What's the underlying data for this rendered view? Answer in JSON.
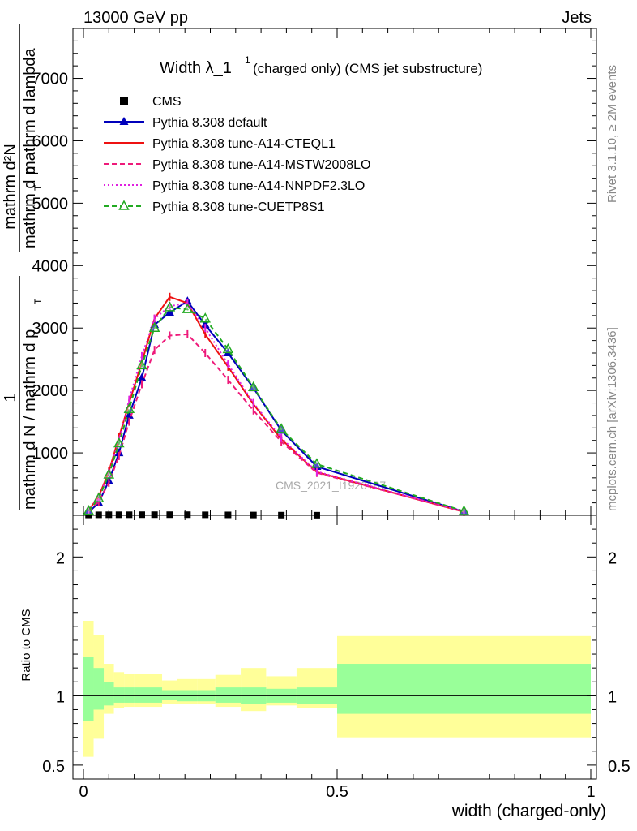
{
  "header": {
    "left": "13000 GeV pp",
    "right": "Jets",
    "side_top": "Rivet 3.1.10, ≥ 2M events",
    "side_bottom": "mcplots.cern.ch [arXiv:1306.3436]",
    "watermark": "CMS_2021_I1920187"
  },
  "chart_data": [
    {
      "type": "line",
      "title": "Width λ_1^1 (charged only) (CMS jet substructure)",
      "title_parts": {
        "main": "Width λ_1",
        "sup": "1",
        "suffix": "(charged only) (CMS jet substructure)"
      },
      "ylabel": "1 / mathrm d N / mathrm d p_T mathrm d^2N / mathrm d p_T mathrm d lambda",
      "ylabel_parts": {
        "one": "1",
        "left_denominator": "mathrm d N / mathrm d p",
        "left_sub": "T",
        "right_numerator": "mathrm d²N",
        "right_denominator": "mathrm d p",
        "right_sub": "T",
        "right_tail": "mathrm d lambda"
      },
      "xlim": [
        0,
        1
      ],
      "ylim": [
        0,
        7800
      ],
      "yticks": [
        1000,
        2000,
        3000,
        4000,
        5000,
        6000,
        7000
      ],
      "ytick_labels": [
        "1000",
        "2000",
        "3000",
        "4000",
        "5000",
        "6000",
        "7000"
      ],
      "grid": false,
      "legend_placement": "top-left",
      "series": [
        {
          "name": "CMS",
          "color": "#000000",
          "style": "markers",
          "marker": "square",
          "x": [
            0.01,
            0.03,
            0.05,
            0.07,
            0.09,
            0.115,
            0.14,
            0.17,
            0.205,
            0.24,
            0.285,
            0.335,
            0.39,
            0.46
          ],
          "y": [
            6,
            8,
            9,
            9,
            9,
            10,
            10,
            10,
            10,
            8,
            7,
            5,
            3,
            2
          ]
        },
        {
          "name": "Pythia 8.308 default",
          "color": "#0000bb",
          "style": "solid",
          "marker": "triangle-filled",
          "x": [
            0.01,
            0.03,
            0.05,
            0.07,
            0.09,
            0.115,
            0.14,
            0.17,
            0.205,
            0.24,
            0.285,
            0.335,
            0.39,
            0.46,
            0.75
          ],
          "y": [
            50,
            200,
            550,
            1000,
            1600,
            2200,
            3050,
            3250,
            3430,
            3050,
            2600,
            2040,
            1360,
            780,
            60
          ]
        },
        {
          "name": "Pythia 8.308 tune-A14-CTEQL1",
          "color": "#ee1111",
          "style": "solid",
          "marker": "none",
          "x": [
            0.01,
            0.03,
            0.05,
            0.07,
            0.09,
            0.115,
            0.14,
            0.17,
            0.205,
            0.24,
            0.285,
            0.335,
            0.39,
            0.46,
            0.75
          ],
          "y": [
            80,
            300,
            700,
            1250,
            1800,
            2450,
            3150,
            3500,
            3400,
            2900,
            2380,
            1780,
            1220,
            690,
            55
          ]
        },
        {
          "name": "Pythia 8.308 tune-A14-MSTW2008LO",
          "color": "#ee1a7a",
          "style": "dashed",
          "marker": "none",
          "x": [
            0.01,
            0.03,
            0.05,
            0.07,
            0.09,
            0.115,
            0.14,
            0.17,
            0.205,
            0.24,
            0.285,
            0.335,
            0.39,
            0.46,
            0.75
          ],
          "y": [
            60,
            220,
            520,
            950,
            1500,
            2100,
            2650,
            2880,
            2900,
            2600,
            2170,
            1680,
            1180,
            680,
            60
          ]
        },
        {
          "name": "Pythia 8.308 tune-A14-NNPDF2.3LO",
          "color": "#e020e0",
          "style": "dotted",
          "marker": "none",
          "x": [
            0.01,
            0.03,
            0.05,
            0.07,
            0.09,
            0.115,
            0.14,
            0.17,
            0.205,
            0.24,
            0.285,
            0.335,
            0.39,
            0.46,
            0.75
          ],
          "y": [
            80,
            280,
            680,
            1200,
            1850,
            2550,
            3150,
            3350,
            3400,
            3000,
            2420,
            1800,
            1240,
            700,
            60
          ]
        },
        {
          "name": "Pythia 8.308 tune-CUETP8S1",
          "color": "#22aa22",
          "style": "dashed",
          "marker": "triangle-open",
          "x": [
            0.01,
            0.03,
            0.05,
            0.07,
            0.09,
            0.115,
            0.14,
            0.17,
            0.205,
            0.24,
            0.285,
            0.335,
            0.39,
            0.46,
            0.75
          ],
          "y": [
            70,
            270,
            650,
            1150,
            1700,
            2400,
            3000,
            3330,
            3300,
            3150,
            2660,
            2050,
            1380,
            820,
            65
          ]
        }
      ]
    },
    {
      "type": "area",
      "ylabel": "Ratio to CMS",
      "xlabel": "width (charged-only)",
      "xlim": [
        0,
        1
      ],
      "ylim": [
        0.4,
        2.3
      ],
      "xticks": [
        0,
        0.5,
        1
      ],
      "xtick_labels": [
        "0",
        "0.5",
        "1"
      ],
      "yticks": [
        0.5,
        1,
        2
      ],
      "ytick_labels": [
        "0.5",
        "1",
        "2"
      ],
      "bins": [
        0,
        0.02,
        0.04,
        0.06,
        0.08,
        0.1,
        0.125,
        0.155,
        0.185,
        0.225,
        0.26,
        0.31,
        0.36,
        0.42,
        0.5,
        1.0
      ],
      "inner_band": {
        "name": "stat",
        "color": "#99ff99",
        "lo": [
          0.82,
          0.9,
          0.93,
          0.95,
          0.95,
          0.95,
          0.95,
          0.97,
          0.96,
          0.96,
          0.95,
          0.94,
          0.95,
          0.94,
          0.87
        ],
        "hi": [
          1.28,
          1.2,
          1.1,
          1.06,
          1.06,
          1.06,
          1.06,
          1.04,
          1.04,
          1.04,
          1.06,
          1.06,
          1.05,
          1.06,
          1.23
        ]
      },
      "outer_band": {
        "name": "total",
        "color": "#ffff99",
        "lo": [
          0.56,
          0.69,
          0.87,
          0.91,
          0.92,
          0.92,
          0.92,
          0.94,
          0.94,
          0.94,
          0.92,
          0.89,
          0.93,
          0.91,
          0.7
        ],
        "hi": [
          1.54,
          1.44,
          1.23,
          1.17,
          1.16,
          1.16,
          1.16,
          1.11,
          1.12,
          1.12,
          1.15,
          1.2,
          1.14,
          1.2,
          1.43
        ]
      },
      "reference_line": 1
    }
  ]
}
